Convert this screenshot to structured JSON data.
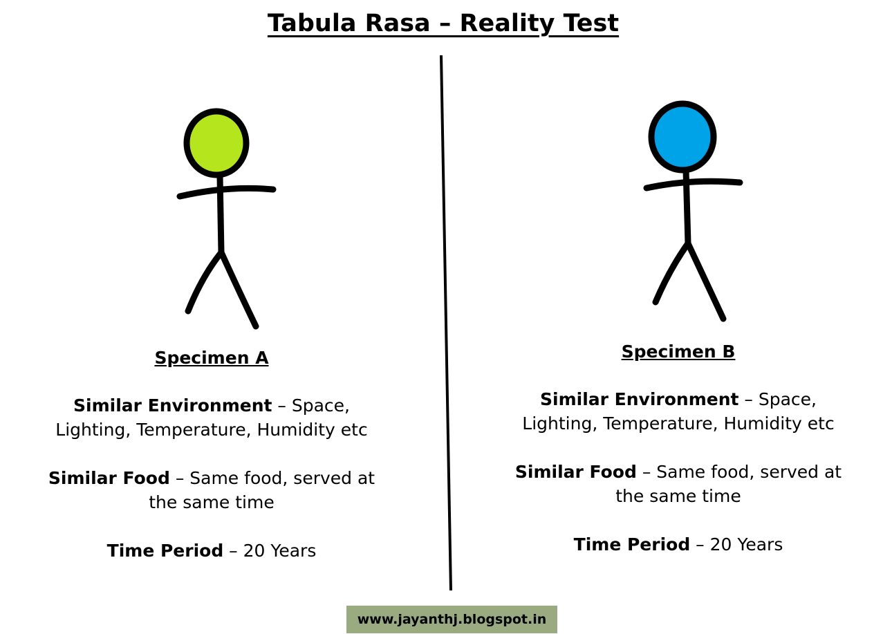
{
  "title": "Tabula Rasa – Reality Test",
  "specimens": [
    {
      "name": "Specimen A",
      "head_color": "#b5e61d",
      "environment": {
        "label": "Similar Environment",
        "text": " – Space,",
        "line2": "Lighting, Temperature, Humidity etc"
      },
      "food": {
        "label": "Similar Food",
        "text": " – Same food, served at",
        "line2": "the same time"
      },
      "time": {
        "label": "Time Period",
        "text": " – 20 Years"
      }
    },
    {
      "name": "Specimen B",
      "head_color": "#00a2e8",
      "environment": {
        "label": "Similar Environment",
        "text": " – Space,",
        "line2": "Lighting, Temperature, Humidity etc"
      },
      "food": {
        "label": "Similar Food",
        "text": " – Same food, served at",
        "line2": "the same time"
      },
      "time": {
        "label": "Time Period",
        "text": " – 20 Years"
      }
    }
  ],
  "footer": "www.jayanthj.blogspot.in"
}
